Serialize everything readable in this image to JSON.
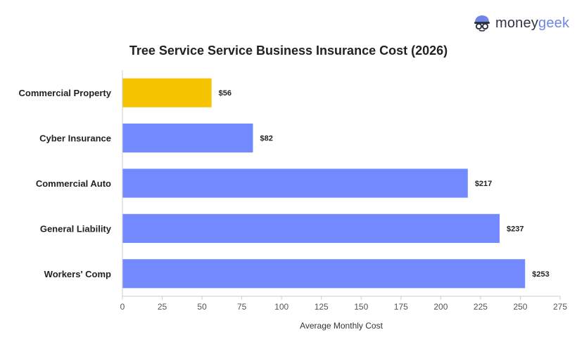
{
  "brand": {
    "logo_word1": "money",
    "logo_word2": "geek",
    "icon": "moneygeek-face-icon",
    "colors": {
      "dark": "#2f3443",
      "accent": "#6f86e6"
    }
  },
  "chart_data": {
    "type": "bar",
    "orientation": "horizontal",
    "title": "Tree Service Service Business Insurance Cost (2026)",
    "xlabel": "Average Monthly Cost",
    "ylabel": "",
    "categories": [
      "Commercial Property",
      "Cyber Insurance",
      "Commercial Auto",
      "General Liability",
      "Workers' Comp"
    ],
    "values": [
      56,
      82,
      217,
      237,
      253
    ],
    "data_labels": [
      "$56",
      "$82",
      "$217",
      "$237",
      "$253"
    ],
    "xlim": [
      0,
      275
    ],
    "xticks": [
      0,
      25,
      50,
      75,
      100,
      125,
      150,
      175,
      200,
      225,
      250,
      275
    ],
    "grid": false,
    "legend": "none",
    "bar_colors": [
      "#f5c400",
      "#7289ff",
      "#7289ff",
      "#7289ff",
      "#7289ff"
    ]
  }
}
